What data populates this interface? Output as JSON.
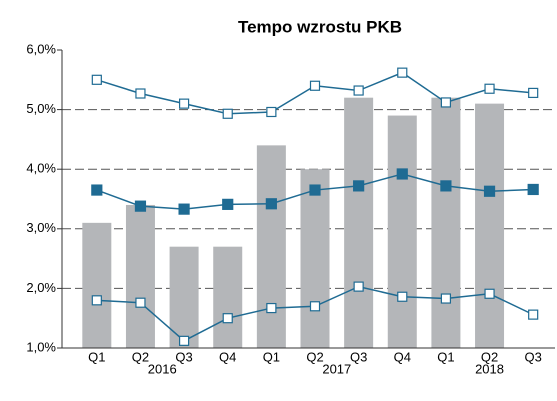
{
  "chart_data": {
    "type": "combo",
    "title": "Tempo wzrostu PKB",
    "categories": [
      "Q1",
      "Q2",
      "Q3",
      "Q4",
      "Q1",
      "Q2",
      "Q3",
      "Q4",
      "Q1",
      "Q2",
      "Q3"
    ],
    "groups": [
      {
        "name": "2016",
        "span": 4
      },
      {
        "name": "2017",
        "span": 4
      },
      {
        "name": "2018",
        "span": 3
      }
    ],
    "ylim": [
      1.0,
      6.0
    ],
    "yticks": [
      {
        "value": 1.0,
        "label": "1,0%"
      },
      {
        "value": 2.0,
        "label": "2,0%"
      },
      {
        "value": 3.0,
        "label": "3,0%"
      },
      {
        "value": 4.0,
        "label": "4,0%"
      },
      {
        "value": 5.0,
        "label": "5,0%"
      },
      {
        "value": 6.0,
        "label": "6,0%"
      }
    ],
    "grid": true,
    "series": [
      {
        "type": "bar",
        "color": "#b4b6b9",
        "values": [
          3.1,
          3.4,
          2.7,
          2.7,
          4.4,
          4.0,
          5.2,
          4.9,
          5.2,
          5.1,
          null
        ]
      },
      {
        "type": "line",
        "color": "#1f6b93",
        "marker_fill": "#ffffff",
        "values": [
          5.5,
          5.27,
          5.1,
          4.93,
          4.96,
          5.4,
          5.32,
          5.62,
          5.12,
          5.35,
          5.28
        ]
      },
      {
        "type": "line",
        "color": "#1f6b93",
        "marker_fill": "#1f6b93",
        "values": [
          3.65,
          3.38,
          3.33,
          3.41,
          3.42,
          3.65,
          3.72,
          3.92,
          3.72,
          3.63,
          3.66
        ]
      },
      {
        "type": "line",
        "color": "#1f6b93",
        "marker_fill": "#ffffff",
        "values": [
          1.8,
          1.76,
          1.12,
          1.5,
          1.67,
          1.7,
          2.03,
          1.86,
          1.83,
          1.91,
          1.56
        ]
      }
    ]
  }
}
